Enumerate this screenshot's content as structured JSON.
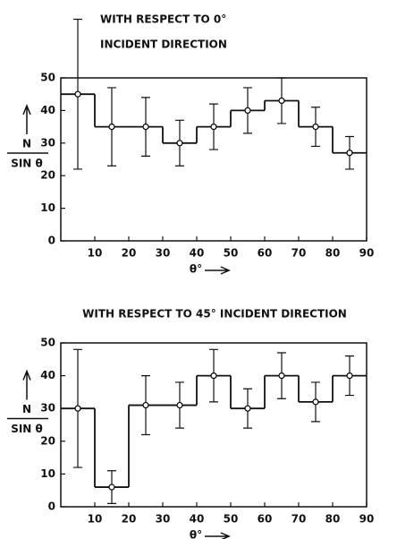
{
  "chart_data": [
    {
      "type": "histogram",
      "title": [
        "WITH RESPECT TO 0°",
        "INCIDENT DIRECTION"
      ],
      "xlabel": "θ°",
      "ylabel": [
        "N",
        "SIN θ"
      ],
      "bins": [
        0,
        10,
        20,
        30,
        40,
        50,
        60,
        70,
        80,
        90
      ],
      "values": [
        45,
        35,
        35,
        30,
        35,
        40,
        43,
        35,
        27
      ],
      "errors": [
        23,
        12,
        9,
        7,
        7,
        7,
        7,
        6,
        5
      ],
      "color": "#000000",
      "xlim": [
        0,
        90
      ],
      "xticks": [
        10,
        20,
        30,
        40,
        50,
        60,
        70,
        80,
        90
      ],
      "ylim": [
        0,
        50
      ],
      "yticks": [
        0,
        10,
        20,
        30,
        40,
        50
      ]
    },
    {
      "type": "histogram",
      "title": [
        "WITH RESPECT TO 45° INCIDENT DIRECTION"
      ],
      "xlabel": "θ°",
      "ylabel": [
        "N",
        "SIN θ"
      ],
      "bins": [
        0,
        10,
        20,
        30,
        40,
        50,
        60,
        70,
        80,
        90
      ],
      "values": [
        30,
        6,
        31,
        31,
        40,
        30,
        40,
        32,
        40
      ],
      "errors": [
        18,
        5,
        9,
        7,
        8,
        6,
        7,
        6,
        6
      ],
      "color": "#000000",
      "xlim": [
        0,
        90
      ],
      "xticks": [
        10,
        20,
        30,
        40,
        50,
        60,
        70,
        80,
        90
      ],
      "ylim": [
        0,
        50
      ],
      "yticks": [
        0,
        10,
        20,
        30,
        40,
        50
      ]
    }
  ]
}
